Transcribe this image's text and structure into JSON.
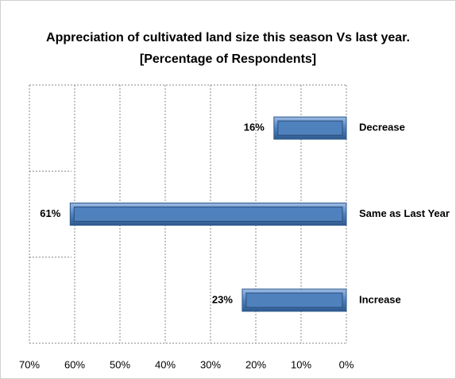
{
  "chart_data": {
    "type": "hbar",
    "title": "Appreciation of cultivated land size this season Vs last year. [Percentage of Respondents]",
    "categories": [
      "Decrease",
      "Same as Last Year",
      "Increase"
    ],
    "values": [
      16,
      61,
      23
    ],
    "value_labels": [
      "16%",
      "61%",
      "23%"
    ],
    "color": "#4f81bd",
    "xlim": [
      0,
      70
    ],
    "xticks": [
      {
        "value": 70,
        "label": "70%"
      },
      {
        "value": 60,
        "label": "60%"
      },
      {
        "value": 50,
        "label": "50%"
      },
      {
        "value": 40,
        "label": "40%"
      },
      {
        "value": 30,
        "label": "30%"
      },
      {
        "value": 20,
        "label": "20%"
      },
      {
        "value": 10,
        "label": "10%"
      },
      {
        "value": 0,
        "label": "0%"
      }
    ],
    "x_reversed": true,
    "grid": true
  }
}
